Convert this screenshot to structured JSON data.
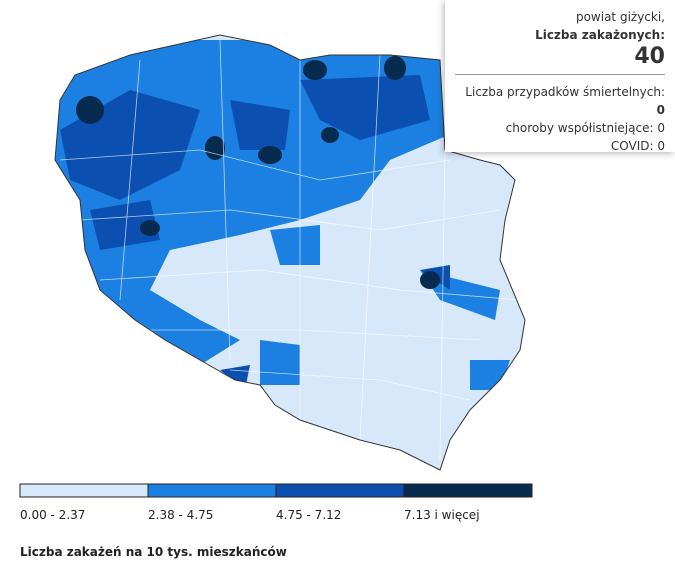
{
  "legend": {
    "items": [
      {
        "label": "0.00 - 2.37",
        "color": "#d8e8fb"
      },
      {
        "label": "2.38 - 4.75",
        "color": "#1b80e2"
      },
      {
        "label": "4.75 - 7.12",
        "color": "#0b4fb0"
      },
      {
        "label": "7.13 i więcej",
        "color": "#062b4f"
      }
    ],
    "caption": "Liczba zakażeń na 10 tys. mieszkańców"
  },
  "tooltip": {
    "region": "powiat giżycki,",
    "label": "Liczba zakażonych:",
    "value": 40,
    "lines": [
      {
        "label": "Liczba przypadków śmiertelnych:",
        "value": 0
      },
      {
        "label": "choroby współistniejące:",
        "value": 0
      },
      {
        "label": "COVID:",
        "value": 0
      }
    ]
  }
}
